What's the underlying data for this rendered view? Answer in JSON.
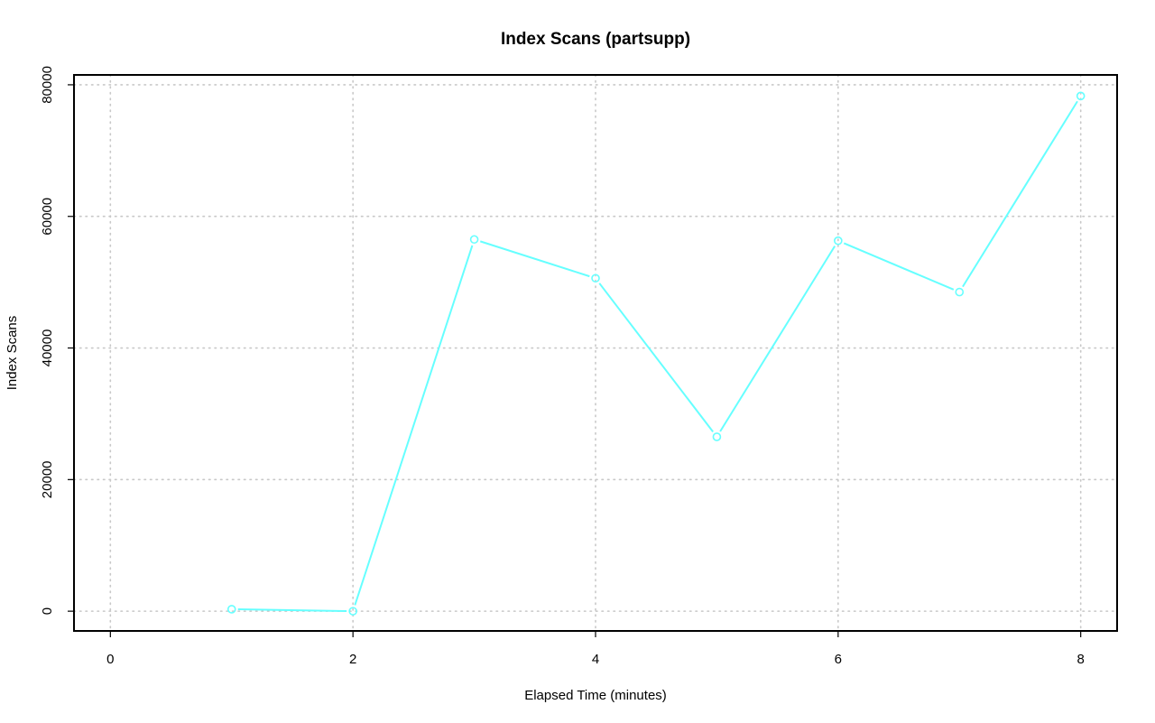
{
  "chart_data": {
    "type": "line",
    "title": "Index Scans (partsupp)",
    "xlabel": "Elapsed Time (minutes)",
    "ylabel": "Index Scans",
    "xlim": [
      -0.3,
      8.3
    ],
    "ylim": [
      -3000,
      81500
    ],
    "xticks": [
      0,
      2,
      4,
      6,
      8
    ],
    "yticks": [
      0,
      20000,
      40000,
      60000,
      80000
    ],
    "grid": true,
    "series": [
      {
        "color": "#66ffff",
        "x": [
          1,
          2,
          3,
          4,
          5,
          6,
          7,
          8
        ],
        "values": [
          300,
          0,
          56500,
          50600,
          26500,
          56300,
          48500,
          78300
        ]
      }
    ]
  }
}
